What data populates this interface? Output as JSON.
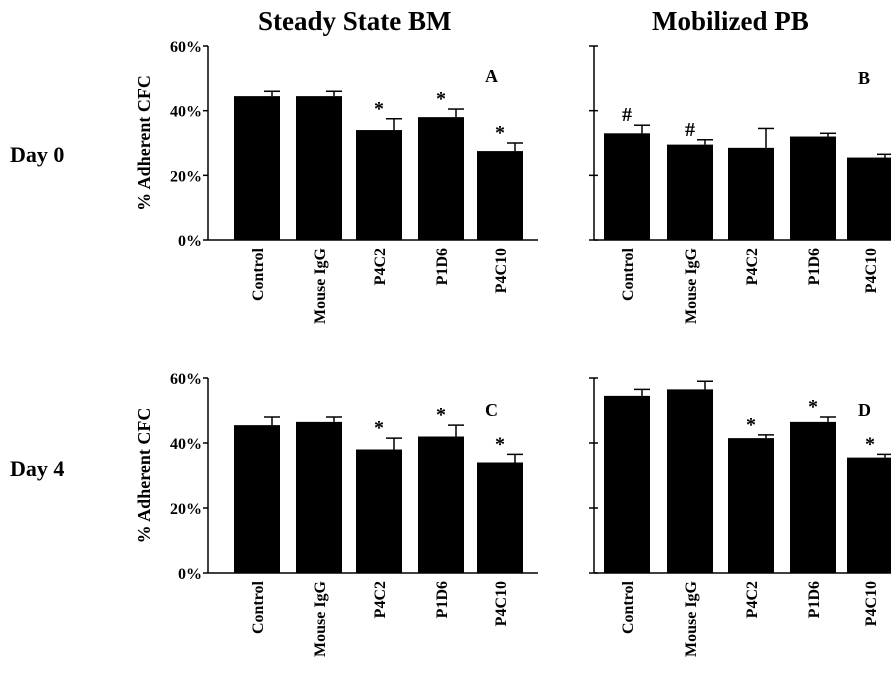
{
  "column_titles": [
    "Steady State BM",
    "Mobilized PB"
  ],
  "row_labels": [
    "Day  0",
    "Day  4"
  ],
  "chart_data": [
    {
      "type": "bar",
      "panel": "A",
      "ylabel": "% Adherent CFC",
      "ylim": [
        0,
        60
      ],
      "yticks": [
        "0%",
        "20%",
        "40%",
        "60%"
      ],
      "categories": [
        "Control",
        "Mouse IgG",
        "P4C2",
        "P1D6",
        "P4C10"
      ],
      "values": [
        44.5,
        44.5,
        34,
        38,
        27.5
      ],
      "errors": [
        1.5,
        1.5,
        3.5,
        2.5,
        2.5
      ],
      "markers": [
        "",
        "",
        "*",
        "*",
        "*"
      ]
    },
    {
      "type": "bar",
      "panel": "B",
      "ylabel": "",
      "ylim": [
        0,
        60
      ],
      "yticks": [
        "",
        "",
        "",
        ""
      ],
      "categories": [
        "Control",
        "Mouse IgG",
        "P4C2",
        "P1D6",
        "P4C10"
      ],
      "values": [
        33,
        29.5,
        28.5,
        32,
        25.5
      ],
      "errors": [
        2.5,
        1.5,
        6,
        1,
        1
      ],
      "markers": [
        "#",
        "#",
        "",
        "",
        ""
      ]
    },
    {
      "type": "bar",
      "panel": "C",
      "ylabel": "% Adherent CFC",
      "ylim": [
        0,
        60
      ],
      "yticks": [
        "0%",
        "20%",
        "40%",
        "60%"
      ],
      "categories": [
        "Control",
        "Mouse IgG",
        "P4C2",
        "P1D6",
        "P4C10"
      ],
      "values": [
        45.5,
        46.5,
        38,
        42,
        34
      ],
      "errors": [
        2.5,
        1.5,
        3.5,
        3.5,
        2.5
      ],
      "markers": [
        "",
        "",
        "*",
        "*",
        "*"
      ]
    },
    {
      "type": "bar",
      "panel": "D",
      "ylabel": "",
      "ylim": [
        0,
        60
      ],
      "yticks": [
        "",
        "",
        "",
        ""
      ],
      "categories": [
        "Control",
        "Mouse IgG",
        "P4C2",
        "P1D6",
        "P4C10"
      ],
      "values": [
        54.5,
        56.5,
        41.5,
        46.5,
        35.5
      ],
      "errors": [
        2,
        2.5,
        1,
        1.5,
        1
      ],
      "markers": [
        "",
        "",
        "*",
        "*",
        "*"
      ]
    }
  ]
}
